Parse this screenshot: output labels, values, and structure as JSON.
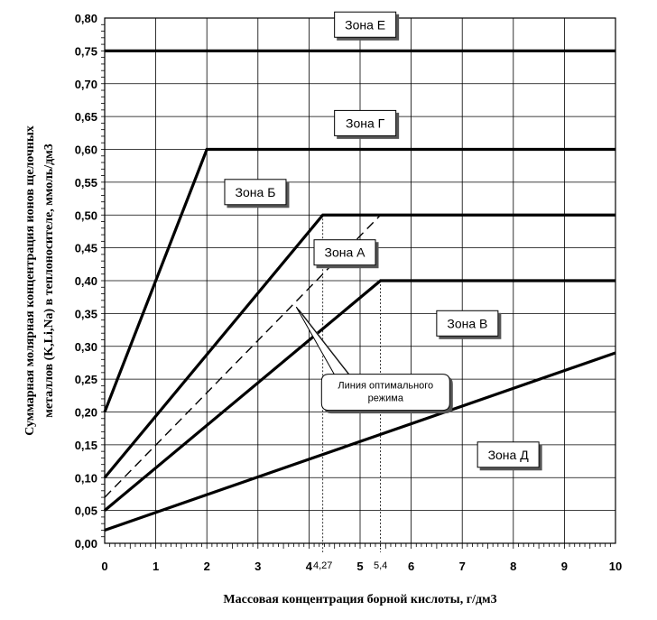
{
  "chart_data": {
    "type": "line",
    "xlabel": "Массовая концентрация борной кислоты, г/дм3",
    "ylabel_lines": [
      "Суммарная молярная концентрация ионов щелочных",
      "металлов (K,Li,Na) в теплоносителе, ммоль/дм3"
    ],
    "xlim": [
      0,
      10
    ],
    "ylim": [
      0,
      0.8
    ],
    "x_ticks": [
      "0",
      "1",
      "2",
      "3",
      "4",
      "5",
      "6",
      "7",
      "8",
      "9",
      "10"
    ],
    "x_special_ticks": [
      {
        "x": 4.27,
        "label": "4,27"
      },
      {
        "x": 5.4,
        "label": "5,4"
      }
    ],
    "y_ticks": [
      "0,00",
      "0,05",
      "0,10",
      "0,15",
      "0,20",
      "0,25",
      "0,30",
      "0,35",
      "0,40",
      "0,45",
      "0,50",
      "0,55",
      "0,60",
      "0,65",
      "0,70",
      "0,75",
      "0,80"
    ],
    "grid": true,
    "series": [
      {
        "style": "solid",
        "x": [
          0,
          10
        ],
        "y": [
          0.75,
          0.75
        ]
      },
      {
        "style": "solid",
        "x": [
          0,
          2,
          10
        ],
        "y": [
          0.2,
          0.6,
          0.6
        ]
      },
      {
        "style": "solid",
        "x": [
          0,
          4.27,
          10
        ],
        "y": [
          0.1,
          0.5,
          0.5
        ]
      },
      {
        "style": "solid",
        "x": [
          0,
          5.4,
          10
        ],
        "y": [
          0.05,
          0.4,
          0.4
        ]
      },
      {
        "style": "solid",
        "x": [
          0,
          10
        ],
        "y": [
          0.02,
          0.29
        ]
      },
      {
        "style": "dashed",
        "x": [
          0,
          5.4
        ],
        "y": [
          0.07,
          0.5
        ]
      }
    ],
    "annotations": [
      {
        "text": "Зона Е",
        "x": 5.1,
        "y": 0.79
      },
      {
        "text": "Зона Г",
        "x": 5.1,
        "y": 0.64
      },
      {
        "text": "Зона Б",
        "x": 2.95,
        "y": 0.535
      },
      {
        "text": "Зона А",
        "x": 4.7,
        "y": 0.443
      },
      {
        "text": "Зона В",
        "x": 7.1,
        "y": 0.335
      },
      {
        "text": "Зона Д",
        "x": 7.9,
        "y": 0.135
      }
    ],
    "callout": {
      "lines": [
        "Линия оптимального",
        "режима"
      ],
      "x": 5.5,
      "y": 0.23,
      "points_to": {
        "x": 3.75,
        "y": 0.36
      }
    }
  }
}
